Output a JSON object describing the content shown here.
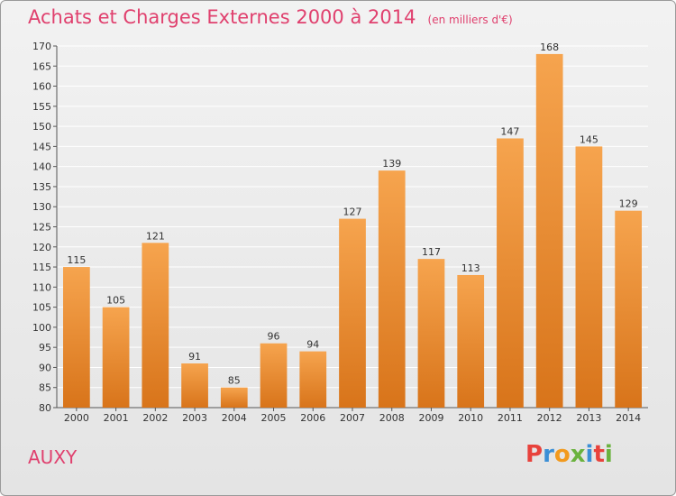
{
  "chart_data": {
    "type": "bar",
    "title": "Achats et Charges Externes 2000 à 2014",
    "subtitle": "(en milliers d'€)",
    "categories": [
      "2000",
      "2001",
      "2002",
      "2003",
      "2004",
      "2005",
      "2006",
      "2007",
      "2008",
      "2009",
      "2010",
      "2011",
      "2012",
      "2013",
      "2014"
    ],
    "values": [
      115,
      105,
      121,
      91,
      85,
      96,
      94,
      127,
      139,
      117,
      113,
      147,
      168,
      145,
      129
    ],
    "ylim": [
      80,
      170
    ],
    "ytick_step": 5,
    "grid": true,
    "bar_color_top": "#f6a44e",
    "bar_color_bottom": "#d8741a"
  },
  "colors": {
    "title": "#e0406e",
    "grid": "#ffffff",
    "axis": "#555555"
  },
  "footer": {
    "town": "AUXY",
    "logo": [
      "P",
      "r",
      "o",
      "x",
      "i",
      "t",
      "i"
    ],
    "logo_colors": [
      "#e8423c",
      "#3b8fd6",
      "#f29a1e",
      "#6ab23e",
      "#3b8fd6",
      "#e8423c",
      "#6ab23e"
    ]
  }
}
